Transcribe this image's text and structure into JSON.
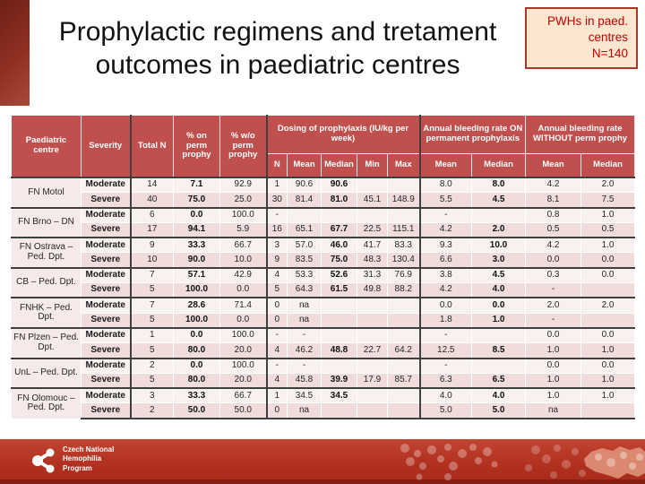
{
  "title": "Prophylactic regimens and tretament outcomes in paediatric centres",
  "callout": {
    "lines": [
      "PWHs in paed.",
      "centres",
      "N=140"
    ]
  },
  "table": {
    "header": {
      "centre": "Paediatric centre",
      "severity": "Severity",
      "total_n": "Total N",
      "pct_on": "% on perm prophy",
      "pct_wo": "% w/o perm prophy",
      "dosing_group": "Dosing of prophylaxis (IU/kg per week)",
      "dosing_sub": [
        "N",
        "Mean",
        "Median",
        "Min",
        "Max"
      ],
      "abr_on_group": "Annual bleeding rate ON permanent prophylaxis",
      "abr_on_sub": [
        "Mean",
        "Median"
      ],
      "abr_wo_group": "Annual bleeding rate WITHOUT perm prophy",
      "abr_wo_sub": [
        "Mean",
        "Median"
      ]
    },
    "row_keys": [
      "severity",
      "total_n",
      "pct_on_prophy",
      "pct_wo_prophy",
      "dose_n",
      "dose_mean",
      "dose_median",
      "dose_min",
      "dose_max",
      "abr_on_mean",
      "abr_on_median",
      "abr_wo_mean",
      "abr_wo_median"
    ],
    "groups": [
      {
        "centre": "FN Motol",
        "rows": [
          {
            "severity": "Moderate",
            "total_n": "14",
            "pct_on_prophy": "7.1",
            "pct_wo_prophy": "92.9",
            "dose_n": "1",
            "dose_mean": "90.6",
            "dose_median": "90.6",
            "dose_min": "",
            "dose_max": "",
            "abr_on_mean": "8.0",
            "abr_on_median": "8.0",
            "abr_wo_mean": "4.2",
            "abr_wo_median": "2.0"
          },
          {
            "severity": "Severe",
            "total_n": "40",
            "pct_on_prophy": "75.0",
            "pct_wo_prophy": "25.0",
            "dose_n": "30",
            "dose_mean": "81.4",
            "dose_median": "81.0",
            "dose_min": "45.1",
            "dose_max": "148.9",
            "abr_on_mean": "5.5",
            "abr_on_median": "4.5",
            "abr_wo_mean": "8.1",
            "abr_wo_median": "7.5"
          }
        ]
      },
      {
        "centre": "FN Brno – DN",
        "rows": [
          {
            "severity": "Moderate",
            "total_n": "6",
            "pct_on_prophy": "0.0",
            "pct_wo_prophy": "100.0",
            "dose_n": "-",
            "dose_mean": "",
            "dose_median": "",
            "dose_min": "",
            "dose_max": "",
            "abr_on_mean": "-",
            "abr_on_median": "",
            "abr_wo_mean": "0.8",
            "abr_wo_median": "1.0"
          },
          {
            "severity": "Severe",
            "total_n": "17",
            "pct_on_prophy": "94.1",
            "pct_wo_prophy": "5.9",
            "dose_n": "16",
            "dose_mean": "65.1",
            "dose_median": "67.7",
            "dose_min": "22.5",
            "dose_max": "115.1",
            "abr_on_mean": "4.2",
            "abr_on_median": "2.0",
            "abr_wo_mean": "0.5",
            "abr_wo_median": "0.5"
          }
        ]
      },
      {
        "centre": "FN Ostrava – Ped. Dpt.",
        "rows": [
          {
            "severity": "Moderate",
            "total_n": "9",
            "pct_on_prophy": "33.3",
            "pct_wo_prophy": "66.7",
            "dose_n": "3",
            "dose_mean": "57.0",
            "dose_median": "46.0",
            "dose_min": "41.7",
            "dose_max": "83.3",
            "abr_on_mean": "9.3",
            "abr_on_median": "10.0",
            "abr_wo_mean": "4.2",
            "abr_wo_median": "1.0"
          },
          {
            "severity": "Severe",
            "total_n": "10",
            "pct_on_prophy": "90.0",
            "pct_wo_prophy": "10.0",
            "dose_n": "9",
            "dose_mean": "83.5",
            "dose_median": "75.0",
            "dose_min": "48.3",
            "dose_max": "130.4",
            "abr_on_mean": "6.6",
            "abr_on_median": "3.0",
            "abr_wo_mean": "0.0",
            "abr_wo_median": "0.0"
          }
        ]
      },
      {
        "centre": "CB – Ped. Dpt.",
        "rows": [
          {
            "severity": "Moderate",
            "total_n": "7",
            "pct_on_prophy": "57.1",
            "pct_wo_prophy": "42.9",
            "dose_n": "4",
            "dose_mean": "53.3",
            "dose_median": "52.6",
            "dose_min": "31.3",
            "dose_max": "76.9",
            "abr_on_mean": "3.8",
            "abr_on_median": "4.5",
            "abr_wo_mean": "0.3",
            "abr_wo_median": "0.0"
          },
          {
            "severity": "Severe",
            "total_n": "5",
            "pct_on_prophy": "100.0",
            "pct_wo_prophy": "0.0",
            "dose_n": "5",
            "dose_mean": "64.3",
            "dose_median": "61.5",
            "dose_min": "49.8",
            "dose_max": "88.2",
            "abr_on_mean": "4.2",
            "abr_on_median": "4.0",
            "abr_wo_mean": "-",
            "abr_wo_median": ""
          }
        ]
      },
      {
        "centre": "FNHK – Ped. Dpt.",
        "rows": [
          {
            "severity": "Moderate",
            "total_n": "7",
            "pct_on_prophy": "28.6",
            "pct_wo_prophy": "71.4",
            "dose_n": "0",
            "dose_mean": "na",
            "dose_median": "",
            "dose_min": "",
            "dose_max": "",
            "abr_on_mean": "0.0",
            "abr_on_median": "0.0",
            "abr_wo_mean": "2.0",
            "abr_wo_median": "2.0"
          },
          {
            "severity": "Severe",
            "total_n": "5",
            "pct_on_prophy": "100.0",
            "pct_wo_prophy": "0.0",
            "dose_n": "0",
            "dose_mean": "na",
            "dose_median": "",
            "dose_min": "",
            "dose_max": "",
            "abr_on_mean": "1.8",
            "abr_on_median": "1.0",
            "abr_wo_mean": "-",
            "abr_wo_median": ""
          }
        ]
      },
      {
        "centre": "FN Plzen – Ped. Dpt.",
        "rows": [
          {
            "severity": "Moderate",
            "total_n": "1",
            "pct_on_prophy": "0.0",
            "pct_wo_prophy": "100.0",
            "dose_n": "-",
            "dose_mean": "-",
            "dose_median": "",
            "dose_min": "",
            "dose_max": "",
            "abr_on_mean": "-",
            "abr_on_median": "",
            "abr_wo_mean": "0.0",
            "abr_wo_median": "0.0"
          },
          {
            "severity": "Severe",
            "total_n": "5",
            "pct_on_prophy": "80.0",
            "pct_wo_prophy": "20.0",
            "dose_n": "4",
            "dose_mean": "46.2",
            "dose_median": "48.8",
            "dose_min": "22.7",
            "dose_max": "64.2",
            "abr_on_mean": "12.5",
            "abr_on_median": "8.5",
            "abr_wo_mean": "1.0",
            "abr_wo_median": "1.0"
          }
        ]
      },
      {
        "centre": "UnL – Ped. Dpt.",
        "rows": [
          {
            "severity": "Moderate",
            "total_n": "2",
            "pct_on_prophy": "0.0",
            "pct_wo_prophy": "100.0",
            "dose_n": "-",
            "dose_mean": "-",
            "dose_median": "",
            "dose_min": "",
            "dose_max": "",
            "abr_on_mean": "-",
            "abr_on_median": "",
            "abr_wo_mean": "0.0",
            "abr_wo_median": "0.0"
          },
          {
            "severity": "Severe",
            "total_n": "5",
            "pct_on_prophy": "80.0",
            "pct_wo_prophy": "20.0",
            "dose_n": "4",
            "dose_mean": "45.8",
            "dose_median": "39.9",
            "dose_min": "17.9",
            "dose_max": "85.7",
            "abr_on_mean": "6.3",
            "abr_on_median": "6.5",
            "abr_wo_mean": "1.0",
            "abr_wo_median": "1.0"
          }
        ]
      },
      {
        "centre": "FN Olomouc – Ped. Dpt.",
        "rows": [
          {
            "severity": "Moderate",
            "total_n": "3",
            "pct_on_prophy": "33.3",
            "pct_wo_prophy": "66.7",
            "dose_n": "1",
            "dose_mean": "34.5",
            "dose_median": "34.5",
            "dose_min": "",
            "dose_max": "",
            "abr_on_mean": "4.0",
            "abr_on_median": "4.0",
            "abr_wo_mean": "1.0",
            "abr_wo_median": "1.0"
          },
          {
            "severity": "Severe",
            "total_n": "2",
            "pct_on_prophy": "50.0",
            "pct_wo_prophy": "50.0",
            "dose_n": "0",
            "dose_mean": "na",
            "dose_median": "",
            "dose_min": "",
            "dose_max": "",
            "abr_on_mean": "5.0",
            "abr_on_median": "5.0",
            "abr_wo_mean": "na",
            "abr_wo_median": ""
          }
        ]
      }
    ]
  },
  "footer": {
    "logo_lines": [
      "Czech National",
      "Hemophilia",
      "Program"
    ]
  },
  "colors": {
    "header_bg": "#c0504d",
    "row_moderate": "#f8f1f0",
    "row_severe": "#efdcdb",
    "band_red": "#b23120",
    "callout_bg": "#fce6cf",
    "callout_text": "#c00000"
  }
}
